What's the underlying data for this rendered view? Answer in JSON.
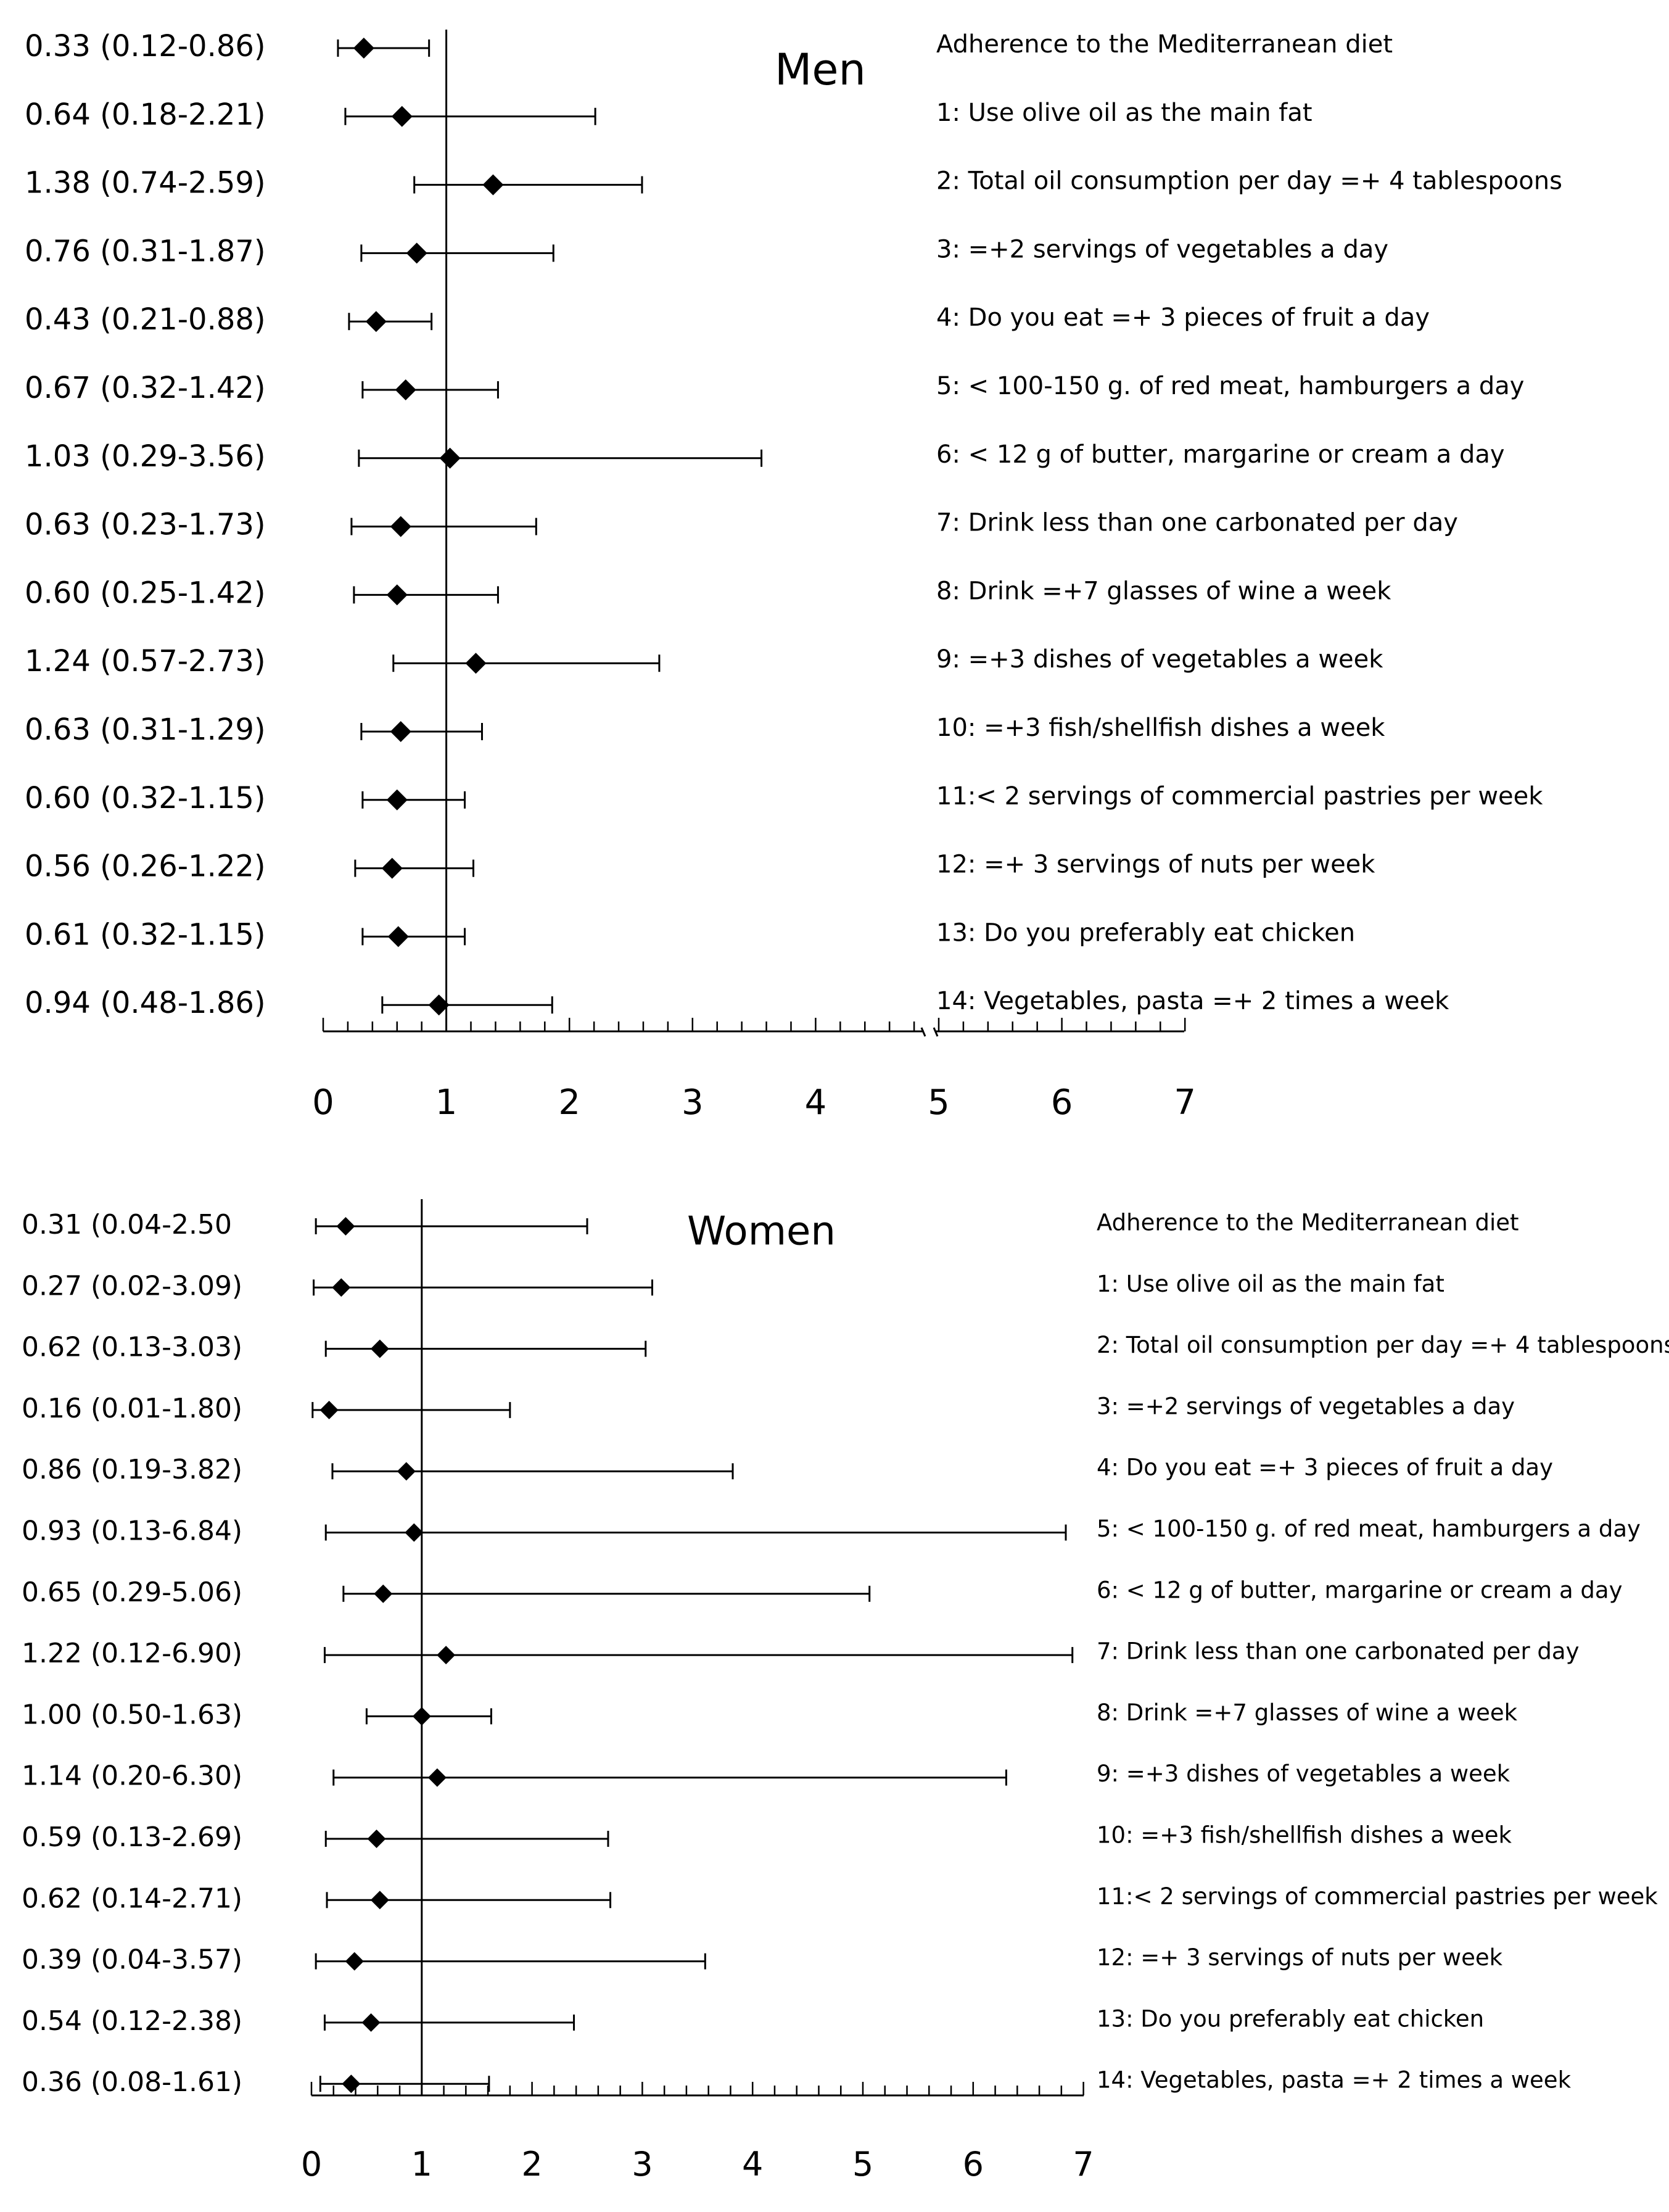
{
  "chart_data": [
    {
      "type": "forest",
      "title": "Men",
      "reference_line": 1,
      "xlim": [
        0,
        7
      ],
      "x_tick_labels": [
        "0",
        "1",
        "2",
        "3",
        "4",
        "5",
        "6",
        "7"
      ],
      "rows": [
        {
          "label": "Adherence to the Mediterranean diet",
          "or_text": "0.33 (0.12-0.86)",
          "or": 0.33,
          "ci_low": 0.12,
          "ci_high": 0.86
        },
        {
          "label": "1: Use olive oil as the main fat",
          "or_text": "0.64 (0.18-2.21)",
          "or": 0.64,
          "ci_low": 0.18,
          "ci_high": 2.21
        },
        {
          "label": "2: Total oil consumption per day =+ 4 tablespoons",
          "or_text": "1.38 (0.74-2.59)",
          "or": 1.38,
          "ci_low": 0.74,
          "ci_high": 2.59
        },
        {
          "label": "3: =+2 servings of vegetables a day",
          "or_text": "0.76 (0.31-1.87)",
          "or": 0.76,
          "ci_low": 0.31,
          "ci_high": 1.87
        },
        {
          "label": "4: Do you eat =+ 3 pieces of fruit a day",
          "or_text": "0.43 (0.21-0.88)",
          "or": 0.43,
          "ci_low": 0.21,
          "ci_high": 0.88
        },
        {
          "label": "5: < 100-150 g. of red meat, hamburgers a day",
          "or_text": "0.67 (0.32-1.42)",
          "or": 0.67,
          "ci_low": 0.32,
          "ci_high": 1.42
        },
        {
          "label": "6: < 12 g of butter, margarine or cream a day",
          "or_text": "1.03 (0.29-3.56)",
          "or": 1.03,
          "ci_low": 0.29,
          "ci_high": 3.56
        },
        {
          "label": "7: Drink less than one carbonated per day",
          "or_text": "0.63 (0.23-1.73)",
          "or": 0.63,
          "ci_low": 0.23,
          "ci_high": 1.73
        },
        {
          "label": "8: Drink =+7 glasses of wine a week",
          "or_text": "0.60 (0.25-1.42)",
          "or": 0.6,
          "ci_low": 0.25,
          "ci_high": 1.42
        },
        {
          "label": "9: =+3 dishes of vegetables a week",
          "or_text": "1.24 (0.57-2.73)",
          "or": 1.24,
          "ci_low": 0.57,
          "ci_high": 2.73
        },
        {
          "label": "10: =+3 fish/shellfish dishes a week",
          "or_text": "0.63 (0.31-1.29)",
          "or": 0.63,
          "ci_low": 0.31,
          "ci_high": 1.29
        },
        {
          "label": "11:< 2 servings of commercial pastries per week",
          "or_text": "0.60 (0.32-1.15)",
          "or": 0.6,
          "ci_low": 0.32,
          "ci_high": 1.15
        },
        {
          "label": "12: =+ 3 servings of nuts per week",
          "or_text": "0.56 (0.26-1.22)",
          "or": 0.56,
          "ci_low": 0.26,
          "ci_high": 1.22
        },
        {
          "label": "13: Do you preferably eat chicken",
          "or_text": "0.61 (0.32-1.15)",
          "or": 0.61,
          "ci_low": 0.32,
          "ci_high": 1.15
        },
        {
          "label": "14: Vegetables, pasta =+ 2 times a week",
          "or_text": "0.94 (0.48-1.86)",
          "or": 0.94,
          "ci_low": 0.48,
          "ci_high": 1.86
        }
      ]
    },
    {
      "type": "forest",
      "title": "Women",
      "reference_line": 1,
      "xlim": [
        0,
        7
      ],
      "x_tick_labels": [
        "0",
        "1",
        "2",
        "3",
        "4",
        "5",
        "6",
        "7"
      ],
      "rows": [
        {
          "label": "Adherence to the Mediterranean diet",
          "or_text": "0.31 (0.04-2.50",
          "or": 0.31,
          "ci_low": 0.04,
          "ci_high": 2.5
        },
        {
          "label": "1: Use olive oil as the main fat",
          "or_text": "0.27 (0.02-3.09)",
          "or": 0.27,
          "ci_low": 0.02,
          "ci_high": 3.09
        },
        {
          "label": "2: Total oil consumption per day =+ 4 tablespoons",
          "or_text": "0.62 (0.13-3.03)",
          "or": 0.62,
          "ci_low": 0.13,
          "ci_high": 3.03
        },
        {
          "label": "3: =+2 servings of vegetables a day",
          "or_text": "0.16 (0.01-1.80)",
          "or": 0.16,
          "ci_low": 0.01,
          "ci_high": 1.8
        },
        {
          "label": "4: Do you eat =+ 3 pieces of fruit a day",
          "or_text": "0.86 (0.19-3.82)",
          "or": 0.86,
          "ci_low": 0.19,
          "ci_high": 3.82
        },
        {
          "label": "5: < 100-150 g. of red meat, hamburgers a day",
          "or_text": "0.93 (0.13-6.84)",
          "or": 0.93,
          "ci_low": 0.13,
          "ci_high": 6.84
        },
        {
          "label": "6: < 12 g of butter, margarine or cream a day",
          "or_text": "0.65 (0.29-5.06)",
          "or": 0.65,
          "ci_low": 0.29,
          "ci_high": 5.06
        },
        {
          "label": "7: Drink less than one carbonated per day",
          "or_text": "1.22 (0.12-6.90)",
          "or": 1.22,
          "ci_low": 0.12,
          "ci_high": 6.9
        },
        {
          "label": "8: Drink =+7 glasses of wine a week",
          "or_text": "1.00 (0.50-1.63)",
          "or": 1.0,
          "ci_low": 0.5,
          "ci_high": 1.63
        },
        {
          "label": "9: =+3 dishes of vegetables a week",
          "or_text": "1.14 (0.20-6.30)",
          "or": 1.14,
          "ci_low": 0.2,
          "ci_high": 6.3
        },
        {
          "label": "10: =+3 fish/shellfish dishes a week",
          "or_text": "0.59 (0.13-2.69)",
          "or": 0.59,
          "ci_low": 0.13,
          "ci_high": 2.69
        },
        {
          "label": "11:< 2 servings of commercial pastries per week",
          "or_text": "0.62 (0.14-2.71)",
          "or": 0.62,
          "ci_low": 0.14,
          "ci_high": 2.71
        },
        {
          "label": "12: =+ 3 servings of nuts per week",
          "or_text": "0.39 (0.04-3.57)",
          "or": 0.39,
          "ci_low": 0.04,
          "ci_high": 3.57
        },
        {
          "label": "13: Do you preferably eat chicken",
          "or_text": "0.54 (0.12-2.38)",
          "or": 0.54,
          "ci_low": 0.12,
          "ci_high": 2.38
        },
        {
          "label": "14: Vegetables, pasta =+ 2 times a week",
          "or_text": "0.36 (0.08-1.61)",
          "or": 0.36,
          "ci_low": 0.08,
          "ci_high": 1.61
        }
      ]
    }
  ]
}
